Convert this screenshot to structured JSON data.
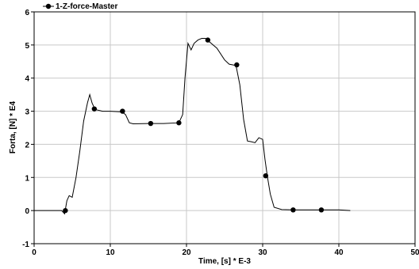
{
  "chart_data": {
    "type": "line",
    "title": "",
    "xlabel": "Time, [s] * E-3",
    "ylabel": "Forta, [N] * E4",
    "xlim": [
      0,
      50
    ],
    "ylim": [
      -1,
      6
    ],
    "x_ticks": [
      0,
      10,
      20,
      30,
      40,
      50
    ],
    "y_ticks": [
      -1,
      0,
      1,
      2,
      3,
      4,
      5,
      6
    ],
    "grid": true,
    "legend_position": "top-left",
    "series": [
      {
        "name": "1-Z-force-Master",
        "color": "#000000",
        "line_points": [
          [
            0.0,
            0.0
          ],
          [
            3.6,
            0.0
          ],
          [
            4.0,
            -0.1
          ],
          [
            4.3,
            0.3
          ],
          [
            4.6,
            0.45
          ],
          [
            5.0,
            0.4
          ],
          [
            5.5,
            1.0
          ],
          [
            6.0,
            1.8
          ],
          [
            6.5,
            2.7
          ],
          [
            7.0,
            3.25
          ],
          [
            7.3,
            3.5
          ],
          [
            7.6,
            3.25
          ],
          [
            8.0,
            3.05
          ],
          [
            9.0,
            3.0
          ],
          [
            10.0,
            3.0
          ],
          [
            11.5,
            2.98
          ],
          [
            12.0,
            2.9
          ],
          [
            12.5,
            2.65
          ],
          [
            13.0,
            2.62
          ],
          [
            15.0,
            2.63
          ],
          [
            17.0,
            2.63
          ],
          [
            19.0,
            2.65
          ],
          [
            19.5,
            2.9
          ],
          [
            19.8,
            4.0
          ],
          [
            20.2,
            5.05
          ],
          [
            20.6,
            4.85
          ],
          [
            21.0,
            5.05
          ],
          [
            21.5,
            5.15
          ],
          [
            22.0,
            5.2
          ],
          [
            22.5,
            5.2
          ],
          [
            23.0,
            5.1
          ],
          [
            24.0,
            4.9
          ],
          [
            25.0,
            4.55
          ],
          [
            25.6,
            4.42
          ],
          [
            26.5,
            4.38
          ],
          [
            27.0,
            3.8
          ],
          [
            27.5,
            2.75
          ],
          [
            28.0,
            2.1
          ],
          [
            28.5,
            2.08
          ],
          [
            29.0,
            2.05
          ],
          [
            29.5,
            2.2
          ],
          [
            30.0,
            2.15
          ],
          [
            30.3,
            1.55
          ],
          [
            30.6,
            1.05
          ],
          [
            31.0,
            0.5
          ],
          [
            31.5,
            0.1
          ],
          [
            32.5,
            0.03
          ],
          [
            34.0,
            0.02
          ],
          [
            37.6,
            0.02
          ],
          [
            40.0,
            0.02
          ],
          [
            41.5,
            0.0
          ]
        ],
        "markers": [
          [
            4.1,
            0.0
          ],
          [
            7.9,
            3.07
          ],
          [
            11.6,
            3.0
          ],
          [
            15.3,
            2.63
          ],
          [
            19.0,
            2.65
          ],
          [
            22.8,
            5.15
          ],
          [
            26.6,
            4.4
          ],
          [
            30.4,
            1.05
          ],
          [
            34.0,
            0.02
          ],
          [
            37.7,
            0.02
          ]
        ]
      }
    ]
  }
}
